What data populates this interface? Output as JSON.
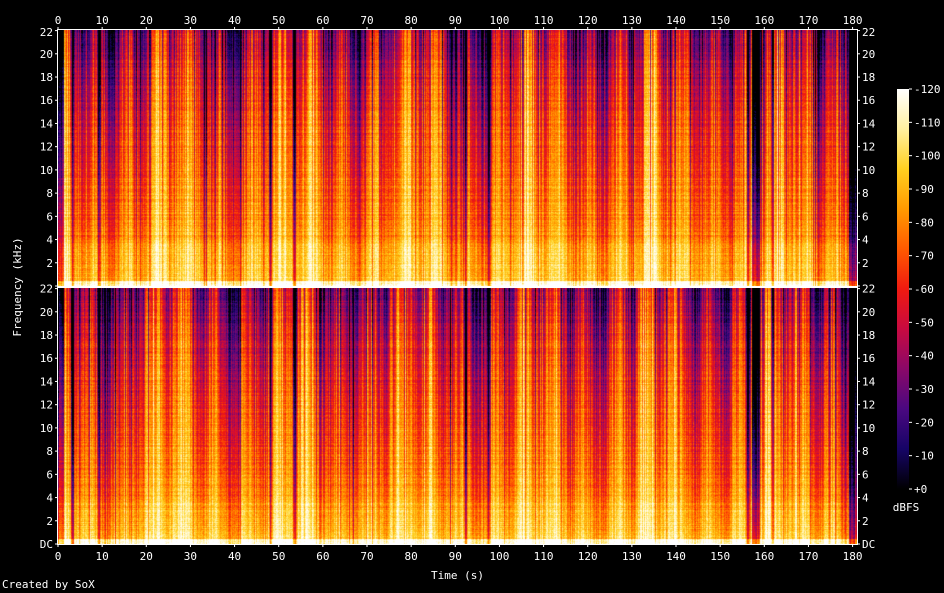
{
  "chart_data": {
    "type": "heatmap",
    "kind": "spectrogram",
    "title": "",
    "xlabel": "Time (s)",
    "ylabel": "Frequency (kHz)",
    "xlim": [
      0,
      181
    ],
    "x_ticks": [
      0,
      10,
      20,
      30,
      40,
      50,
      60,
      70,
      80,
      90,
      100,
      110,
      120,
      130,
      140,
      150,
      160,
      170,
      180
    ],
    "ylim_khz": [
      0,
      22.05
    ],
    "y_ticks": [
      "DC",
      "2",
      "4",
      "6",
      "8",
      "10",
      "12",
      "14",
      "16",
      "18",
      "20",
      "22"
    ],
    "y_tick_values": [
      0,
      2,
      4,
      6,
      8,
      10,
      12,
      14,
      16,
      18,
      20,
      22
    ],
    "channels": 2,
    "colorbar": {
      "label": "dBFS",
      "range": [
        -120,
        0
      ],
      "ticks": [
        "+0",
        "-10",
        "-20",
        "-30",
        "-40",
        "-50",
        "-60",
        "-70",
        "-80",
        "-90",
        "-100",
        "-110",
        "-120"
      ],
      "tick_values": [
        0,
        -10,
        -20,
        -30,
        -40,
        -50,
        -60,
        -70,
        -80,
        -90,
        -100,
        -110,
        -120
      ]
    },
    "colormap": [
      "#ffffff",
      "#fff0a0",
      "#ffd020",
      "#ff9a00",
      "#ff5a00",
      "#f01a10",
      "#c80a40",
      "#8a0868",
      "#4a0880",
      "#160466",
      "#000000"
    ],
    "dark_gaps_s": [
      3.2,
      9.2,
      48.1,
      53.5,
      92.3,
      97.5,
      156.2,
      161.8
    ],
    "quiet_regions_s": [
      [
        0,
        1.2
      ],
      [
        157,
        159
      ],
      [
        179,
        181
      ]
    ],
    "legend_position": "right"
  },
  "footer": {
    "credit": "Created by SoX"
  }
}
